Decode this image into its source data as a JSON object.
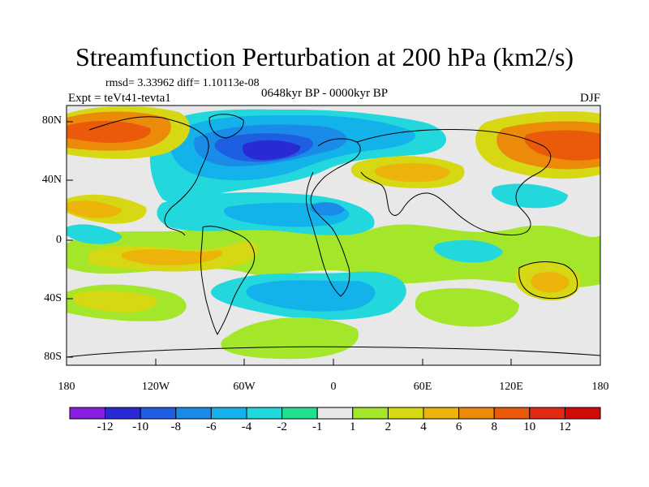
{
  "title": "Streamfunction Perturbation at 200 hPa (km2/s)",
  "stats": "rmsd= 3.33962 diff= 1.10113e-08",
  "experiment": "Expt = teVt41-tevta1",
  "period": "0648kyr BP - 0000kyr BP",
  "season": "DJF",
  "axes": {
    "y_labels": [
      "80N",
      "40N",
      "0",
      "40S",
      "80S"
    ],
    "x_labels": [
      "180",
      "120W",
      "60W",
      "0",
      "60E",
      "120E",
      "180"
    ]
  },
  "colorbar": {
    "labels": [
      "-12",
      "-10",
      "-8",
      "-6",
      "-4",
      "-2",
      "-1",
      "1",
      "2",
      "4",
      "6",
      "8",
      "10",
      "12"
    ],
    "colors": [
      "#8a1ee0",
      "#2a2ad4",
      "#1e5ee0",
      "#1a8ce8",
      "#14b2ea",
      "#22d8dc",
      "#22e090",
      "#e8e8e8",
      "#a4e62a",
      "#d6d814",
      "#ecb40a",
      "#ec8a0a",
      "#ea5a0a",
      "#e02a14",
      "#d20a0a"
    ]
  },
  "colors": {
    "ocean_neutral": "#e8e8e8",
    "coast": "#000000"
  }
}
